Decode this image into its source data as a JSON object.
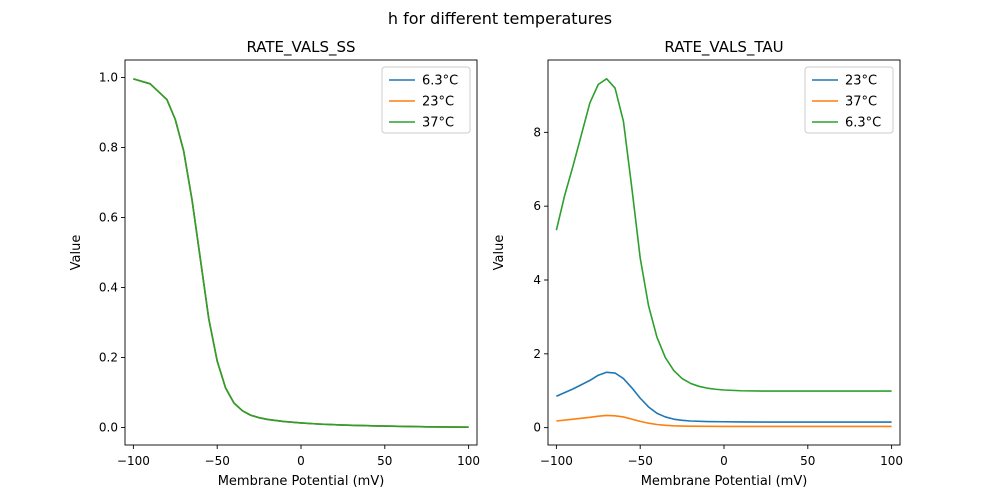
{
  "figure_title": "h for different temperatures",
  "chart_data": [
    {
      "type": "line",
      "title": "RATE_VALS_SS",
      "xlabel": "Membrane Potential (mV)",
      "ylabel": "Value",
      "xlim": [
        -105,
        105
      ],
      "ylim": [
        -0.05,
        1.05
      ],
      "xticks": [
        -100,
        -50,
        0,
        50,
        100
      ],
      "yticks": [
        0.0,
        0.2,
        0.4,
        0.6,
        0.8,
        1.0
      ],
      "ytick_labels": [
        "0.0",
        "0.2",
        "0.4",
        "0.6",
        "0.8",
        "1.0"
      ],
      "legend_position": "top-right",
      "grid": false,
      "series": [
        {
          "name": "6.3°C",
          "color": "#1f77b4",
          "x": [
            -100,
            -90,
            -80,
            -75,
            -70,
            -65,
            -60,
            -55,
            -50,
            -45,
            -40,
            -35,
            -30,
            -25,
            -20,
            -10,
            0,
            10,
            25,
            50,
            75,
            100
          ],
          "y": [
            0.996,
            0.982,
            0.937,
            0.88,
            0.79,
            0.65,
            0.48,
            0.31,
            0.19,
            0.113,
            0.07,
            0.048,
            0.035,
            0.028,
            0.023,
            0.017,
            0.013,
            0.01,
            0.007,
            0.004,
            0.002,
            0.001
          ]
        },
        {
          "name": "23°C",
          "color": "#ff7f0e",
          "x": [
            -100,
            -90,
            -80,
            -75,
            -70,
            -65,
            -60,
            -55,
            -50,
            -45,
            -40,
            -35,
            -30,
            -25,
            -20,
            -10,
            0,
            10,
            25,
            50,
            75,
            100
          ],
          "y": [
            0.996,
            0.982,
            0.937,
            0.88,
            0.79,
            0.65,
            0.48,
            0.31,
            0.19,
            0.113,
            0.07,
            0.048,
            0.035,
            0.028,
            0.023,
            0.017,
            0.013,
            0.01,
            0.007,
            0.004,
            0.002,
            0.001
          ]
        },
        {
          "name": "37°C",
          "color": "#2ca02c",
          "x": [
            -100,
            -90,
            -80,
            -75,
            -70,
            -65,
            -60,
            -55,
            -50,
            -45,
            -40,
            -35,
            -30,
            -25,
            -20,
            -10,
            0,
            10,
            25,
            50,
            75,
            100
          ],
          "y": [
            0.996,
            0.982,
            0.937,
            0.88,
            0.79,
            0.65,
            0.48,
            0.31,
            0.19,
            0.113,
            0.07,
            0.048,
            0.035,
            0.028,
            0.023,
            0.017,
            0.013,
            0.01,
            0.007,
            0.004,
            0.002,
            0.001
          ]
        }
      ]
    },
    {
      "type": "line",
      "title": "RATE_VALS_TAU",
      "xlabel": "Membrane Potential (mV)",
      "ylabel": "Value",
      "xlim": [
        -105,
        105
      ],
      "ylim": [
        -0.47,
        9.96
      ],
      "xticks": [
        -100,
        -50,
        0,
        50,
        100
      ],
      "yticks": [
        0,
        2,
        4,
        6,
        8
      ],
      "ytick_labels": [
        "0",
        "2",
        "4",
        "6",
        "8"
      ],
      "legend_position": "top-right",
      "grid": false,
      "series": [
        {
          "name": "23°C",
          "color": "#1f77b4",
          "x": [
            -100,
            -90,
            -80,
            -75,
            -70,
            -65,
            -60,
            -55,
            -50,
            -45,
            -40,
            -35,
            -30,
            -25,
            -20,
            -10,
            0,
            10,
            25,
            50,
            75,
            100
          ],
          "y": [
            0.85,
            1.05,
            1.28,
            1.42,
            1.5,
            1.48,
            1.33,
            1.08,
            0.8,
            0.56,
            0.39,
            0.29,
            0.23,
            0.2,
            0.18,
            0.165,
            0.16,
            0.155,
            0.152,
            0.151,
            0.15,
            0.15
          ]
        },
        {
          "name": "37°C",
          "color": "#ff7f0e",
          "x": [
            -100,
            -90,
            -80,
            -75,
            -70,
            -65,
            -60,
            -55,
            -50,
            -45,
            -40,
            -35,
            -30,
            -25,
            -20,
            -10,
            0,
            10,
            25,
            50,
            75,
            100
          ],
          "y": [
            0.18,
            0.23,
            0.28,
            0.31,
            0.33,
            0.32,
            0.29,
            0.23,
            0.17,
            0.12,
            0.085,
            0.063,
            0.05,
            0.043,
            0.039,
            0.035,
            0.034,
            0.033,
            0.032,
            0.032,
            0.032,
            0.032
          ]
        },
        {
          "name": "6.3°C",
          "color": "#2ca02c",
          "x": [
            -100,
            -95,
            -90,
            -85,
            -80,
            -75,
            -70,
            -65,
            -60,
            -55,
            -50,
            -45,
            -40,
            -35,
            -30,
            -25,
            -20,
            -15,
            -10,
            -5,
            0,
            10,
            25,
            50,
            75,
            100
          ],
          "y": [
            5.35,
            6.3,
            7.1,
            7.95,
            8.8,
            9.3,
            9.45,
            9.2,
            8.3,
            6.5,
            4.6,
            3.3,
            2.45,
            1.9,
            1.55,
            1.33,
            1.2,
            1.12,
            1.07,
            1.04,
            1.02,
            1.0,
            0.99,
            0.99,
            0.99,
            0.99
          ]
        }
      ]
    }
  ]
}
